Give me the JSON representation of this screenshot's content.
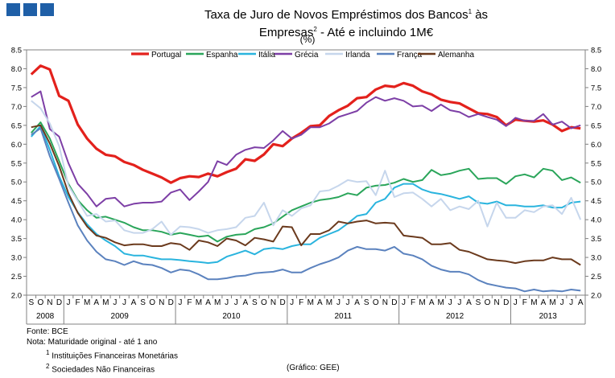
{
  "header": {
    "title_part1": "Taxa de Juro de Novos Empréstimos dos Bancos",
    "sup1": "1",
    "title_part2": " às Empresas",
    "sup2": "2",
    "title_part3": " - Até e incluindo 1M€",
    "unit": "(%)"
  },
  "notes": {
    "source": "Fonte: BCE",
    "nota": "Nota: Maturidade original - até 1 ano",
    "fn1_num": "1",
    "fn1_text": "Instituições Financeiras Monetárias",
    "fn2_num": "2",
    "fn2_text": "Sociedades Não Financeiras",
    "credit": "(Gráfico: GEE)"
  },
  "colors": {
    "Portugal": "#e3211c",
    "Espanha": "#2aa55a",
    "Itália": "#2ab4de",
    "Grécia": "#7d3fa6",
    "Irlanda": "#c6d6ec",
    "França": "#5b82be",
    "Alemanha": "#6b3a1d"
  },
  "chart_data": {
    "type": "line",
    "title": "Taxa de Juro de Novos Empréstimos dos Bancos às Empresas - Até e incluindo 1M€",
    "ylabel": "(%)",
    "ylim": [
      2.0,
      8.5
    ],
    "yticks": [
      "2.0",
      "2.5",
      "3.0",
      "3.5",
      "4.0",
      "4.5",
      "5.0",
      "5.5",
      "6.0",
      "6.5",
      "7.0",
      "7.5",
      "8.0",
      "8.5"
    ],
    "month_labels": [
      "S",
      "O",
      "N",
      "D",
      "J",
      "F",
      "M",
      "A",
      "M",
      "J",
      "J",
      "A",
      "S",
      "O",
      "N",
      "D",
      "J",
      "F",
      "M",
      "A",
      "M",
      "J",
      "J",
      "A",
      "S",
      "O",
      "N",
      "D",
      "J",
      "F",
      "M",
      "A",
      "M",
      "J",
      "J",
      "A",
      "S",
      "O",
      "N",
      "D",
      "J",
      "F",
      "M",
      "A",
      "M",
      "J",
      "J",
      "A",
      "S",
      "O",
      "N",
      "D",
      "J",
      "F",
      "M",
      "A",
      "M",
      "J",
      "J",
      "A"
    ],
    "years": [
      {
        "label": "2008",
        "start": 0,
        "end": 3
      },
      {
        "label": "2009",
        "start": 4,
        "end": 15
      },
      {
        "label": "2010",
        "start": 16,
        "end": 27
      },
      {
        "label": "2011",
        "start": 28,
        "end": 39
      },
      {
        "label": "2012",
        "start": 40,
        "end": 51
      },
      {
        "label": "2013",
        "start": 52,
        "end": 59
      }
    ],
    "series": [
      {
        "name": "Portugal",
        "values": [
          7.85,
          8.08,
          7.98,
          7.28,
          7.15,
          6.52,
          6.15,
          5.88,
          5.72,
          5.68,
          5.53,
          5.45,
          5.32,
          5.22,
          5.12,
          4.98,
          5.1,
          5.15,
          5.13,
          5.22,
          5.15,
          5.26,
          5.35,
          5.6,
          5.56,
          5.73,
          6.0,
          5.95,
          6.15,
          6.3,
          6.48,
          6.5,
          6.75,
          6.9,
          7.02,
          7.22,
          7.25,
          7.45,
          7.55,
          7.52,
          7.62,
          7.55,
          7.4,
          7.32,
          7.18,
          7.12,
          7.08,
          6.95,
          6.82,
          6.8,
          6.72,
          6.5,
          6.65,
          6.62,
          6.6,
          6.63,
          6.52,
          6.35,
          6.45,
          6.42
        ]
      },
      {
        "name": "Espanha",
        "values": [
          6.3,
          6.58,
          6.15,
          5.55,
          4.95,
          4.52,
          4.25,
          4.05,
          4.08,
          4.0,
          3.92,
          3.8,
          3.72,
          3.72,
          3.68,
          3.6,
          3.65,
          3.6,
          3.55,
          3.58,
          3.42,
          3.55,
          3.6,
          3.62,
          3.75,
          3.8,
          3.9,
          4.08,
          4.25,
          4.35,
          4.45,
          4.52,
          4.55,
          4.6,
          4.7,
          4.65,
          4.85,
          4.9,
          4.92,
          4.98,
          5.08,
          5.0,
          5.05,
          5.32,
          5.18,
          5.22,
          5.3,
          5.35,
          5.08,
          5.1,
          5.1,
          4.95,
          5.15,
          5.2,
          5.12,
          5.35,
          5.3,
          5.05,
          5.12,
          4.98
        ]
      },
      {
        "name": "Itália",
        "values": [
          6.2,
          6.48,
          5.85,
          5.15,
          4.6,
          4.2,
          3.88,
          3.62,
          3.45,
          3.3,
          3.1,
          3.05,
          3.05,
          3.0,
          2.95,
          2.95,
          2.93,
          2.9,
          2.88,
          2.85,
          2.88,
          3.02,
          3.1,
          3.18,
          3.08,
          3.22,
          3.25,
          3.22,
          3.3,
          3.35,
          3.35,
          3.52,
          3.62,
          3.72,
          3.9,
          4.1,
          4.15,
          4.45,
          4.55,
          4.85,
          4.95,
          4.95,
          4.8,
          4.72,
          4.68,
          4.62,
          4.55,
          4.62,
          4.45,
          4.42,
          4.48,
          4.38,
          4.38,
          4.35,
          4.35,
          4.38,
          4.32,
          4.32,
          4.45,
          4.48
        ]
      },
      {
        "name": "Grécia",
        "values": [
          7.25,
          7.4,
          6.4,
          6.2,
          5.5,
          4.95,
          4.68,
          4.35,
          4.55,
          4.58,
          4.35,
          4.42,
          4.45,
          4.45,
          4.48,
          4.72,
          4.8,
          4.52,
          4.75,
          5.0,
          5.55,
          5.45,
          5.72,
          5.85,
          5.92,
          5.9,
          6.1,
          6.35,
          6.15,
          6.25,
          6.45,
          6.45,
          6.55,
          6.72,
          6.8,
          6.88,
          7.1,
          7.25,
          7.15,
          7.22,
          7.15,
          7.0,
          7.02,
          6.88,
          7.05,
          6.9,
          6.85,
          6.72,
          6.8,
          6.72,
          6.65,
          6.48,
          6.7,
          6.62,
          6.62,
          6.8,
          6.52,
          6.6,
          6.42,
          6.5
        ]
      },
      {
        "name": "Irlanda",
        "values": [
          7.15,
          6.95,
          6.55,
          5.95,
          4.9,
          4.5,
          4.1,
          4.15,
          3.95,
          3.98,
          3.72,
          3.65,
          3.65,
          3.75,
          3.95,
          3.6,
          3.82,
          3.8,
          3.75,
          3.65,
          3.72,
          3.75,
          3.8,
          4.05,
          4.1,
          4.45,
          3.85,
          4.25,
          4.1,
          4.3,
          4.38,
          4.75,
          4.78,
          4.9,
          5.05,
          5.0,
          5.02,
          4.65,
          5.3,
          4.6,
          4.7,
          4.72,
          4.55,
          4.35,
          4.55,
          4.25,
          4.35,
          4.28,
          4.5,
          3.82,
          4.45,
          4.05,
          4.05,
          4.25,
          4.2,
          4.35,
          4.38,
          4.15,
          4.58,
          4.0
        ]
      },
      {
        "name": "França",
        "values": [
          6.25,
          6.42,
          5.68,
          5.08,
          4.45,
          3.85,
          3.45,
          3.15,
          2.95,
          2.9,
          2.8,
          2.9,
          2.82,
          2.8,
          2.72,
          2.6,
          2.68,
          2.65,
          2.55,
          2.42,
          2.42,
          2.45,
          2.5,
          2.52,
          2.58,
          2.6,
          2.62,
          2.68,
          2.6,
          2.6,
          2.72,
          2.82,
          2.9,
          3.0,
          3.18,
          3.28,
          3.22,
          3.22,
          3.18,
          3.28,
          3.1,
          3.05,
          2.95,
          2.78,
          2.68,
          2.62,
          2.62,
          2.55,
          2.4,
          2.3,
          2.25,
          2.2,
          2.18,
          2.1,
          2.15,
          2.1,
          2.12,
          2.1,
          2.15,
          2.12
        ]
      },
      {
        "name": "Alemanha",
        "values": [
          6.45,
          6.5,
          6.02,
          5.42,
          4.7,
          4.18,
          3.82,
          3.58,
          3.52,
          3.4,
          3.32,
          3.35,
          3.35,
          3.3,
          3.3,
          3.38,
          3.35,
          3.2,
          3.45,
          3.4,
          3.3,
          3.5,
          3.45,
          3.32,
          3.52,
          3.48,
          3.42,
          3.82,
          3.8,
          3.32,
          3.62,
          3.62,
          3.72,
          3.95,
          3.9,
          3.95,
          3.98,
          3.9,
          3.92,
          3.9,
          3.58,
          3.55,
          3.52,
          3.35,
          3.35,
          3.38,
          3.2,
          3.15,
          3.05,
          2.95,
          2.92,
          2.9,
          2.85,
          2.9,
          2.92,
          2.92,
          3.0,
          2.95,
          2.95,
          2.8
        ]
      }
    ]
  }
}
